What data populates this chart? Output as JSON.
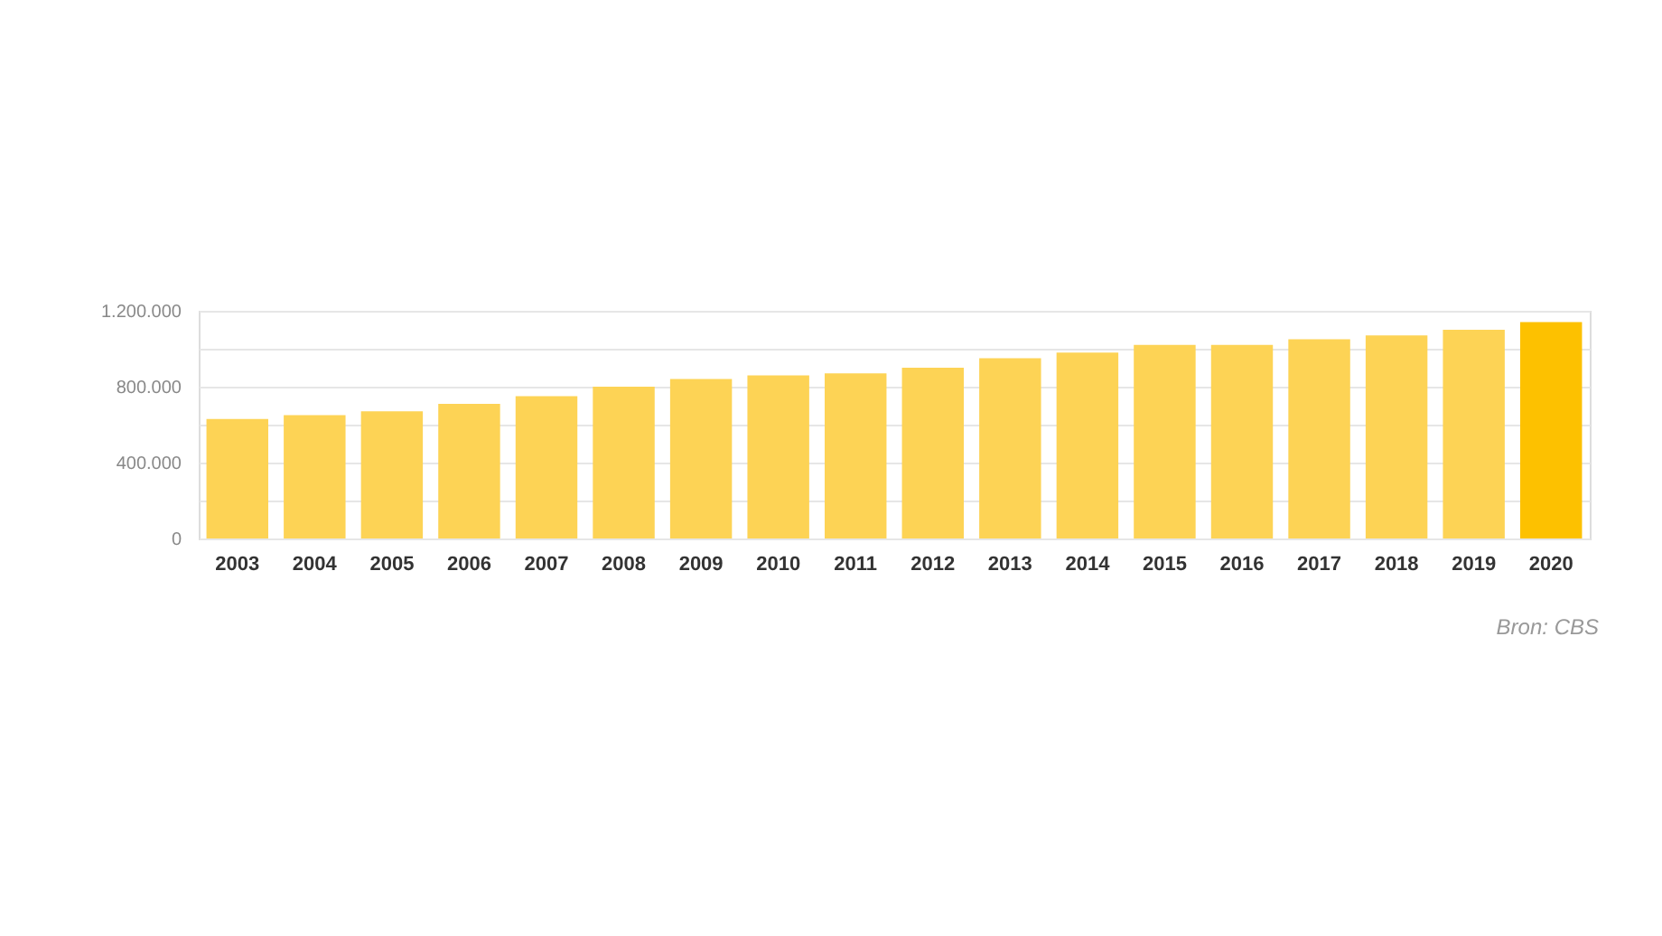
{
  "chart_data": {
    "type": "bar",
    "categories": [
      "2003",
      "2004",
      "2005",
      "2006",
      "2007",
      "2008",
      "2009",
      "2010",
      "2011",
      "2012",
      "2013",
      "2014",
      "2015",
      "2016",
      "2017",
      "2018",
      "2019",
      "2020"
    ],
    "values": [
      630000,
      650000,
      670000,
      710000,
      750000,
      800000,
      840000,
      860000,
      870000,
      900000,
      950000,
      980000,
      1020000,
      1020000,
      1050000,
      1070000,
      1100000,
      1140000
    ],
    "colors": [
      "#fdd355",
      "#fdd355",
      "#fdd355",
      "#fdd355",
      "#fdd355",
      "#fdd355",
      "#fdd355",
      "#fdd355",
      "#fdd355",
      "#fdd355",
      "#fdd355",
      "#fdd355",
      "#fdd355",
      "#fdd355",
      "#fdd355",
      "#fdd355",
      "#fdd355",
      "#fdc100"
    ],
    "ylim": [
      0,
      1200000
    ],
    "yticks": [
      0,
      {
        "value": 200000,
        "label": null
      },
      {
        "value": 400000,
        "label": "400.000"
      },
      {
        "value": 600000,
        "label": null
      },
      {
        "value": 800000,
        "label": "800.000"
      },
      {
        "value": 1000000,
        "label": null
      },
      {
        "value": 1200000,
        "label": "1.200.000"
      }
    ],
    "grid": "y",
    "annotations": [
      "Bron: CBS"
    ]
  }
}
